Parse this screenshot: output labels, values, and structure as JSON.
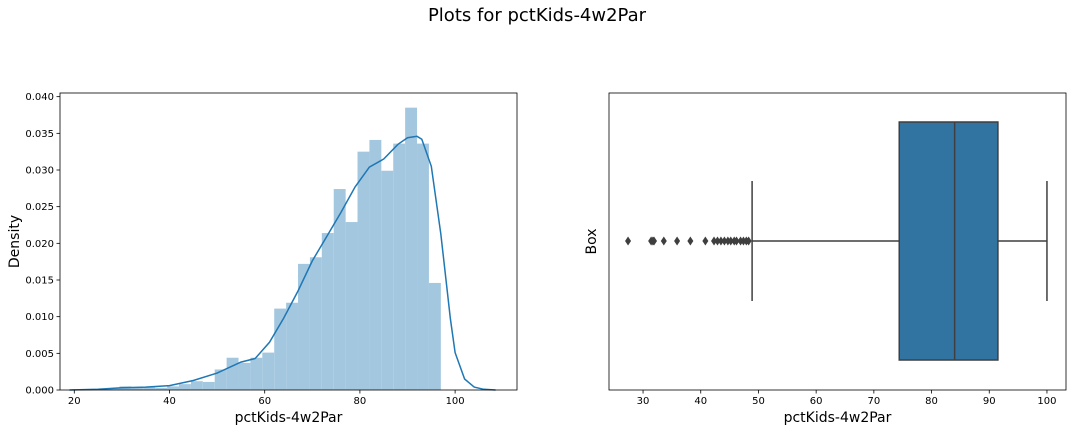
{
  "figure": {
    "suptitle": "Plots for pctKids-4w2Par"
  },
  "colors": {
    "hist": "#a3c7df",
    "kde": "#1f77b4",
    "box": "#3274a1",
    "box_line": "#3f3f3f"
  },
  "chart_data": [
    {
      "type": "histogram",
      "xlabel": "pctKids-4w2Par",
      "ylabel": "Density",
      "xlim": [
        17,
        113
      ],
      "ylim": [
        0,
        0.0405
      ],
      "xticks": [
        20,
        40,
        60,
        80,
        100
      ],
      "xtick_labels": [
        "20",
        "40",
        "60",
        "80",
        "100"
      ],
      "yticks": [
        0,
        0.005,
        0.01,
        0.015,
        0.02,
        0.025,
        0.03,
        0.035,
        0.04
      ],
      "ytick_labels": [
        "0.000",
        "0.005",
        "0.010",
        "0.015",
        "0.020",
        "0.025",
        "0.030",
        "0.035",
        "0.040"
      ],
      "bins": [
        {
          "x0": 19.5,
          "x1": 22.0,
          "h": 0.0001
        },
        {
          "x0": 22.0,
          "x1": 24.5,
          "h": 0.0001
        },
        {
          "x0": 24.5,
          "x1": 27.0,
          "h": 0.0001
        },
        {
          "x0": 27.0,
          "x1": 29.5,
          "h": 0.0002
        },
        {
          "x0": 29.5,
          "x1": 32.0,
          "h": 0.0005
        },
        {
          "x0": 32.0,
          "x1": 34.5,
          "h": 0.0004
        },
        {
          "x0": 34.5,
          "x1": 37.0,
          "h": 0.0004
        },
        {
          "x0": 37.0,
          "x1": 39.5,
          "h": 0.0003
        },
        {
          "x0": 39.5,
          "x1": 42.0,
          "h": 0.0005
        },
        {
          "x0": 42.0,
          "x1": 44.5,
          "h": 0.0008
        },
        {
          "x0": 44.5,
          "x1": 47.0,
          "h": 0.0012
        },
        {
          "x0": 47.0,
          "x1": 49.5,
          "h": 0.0011
        },
        {
          "x0": 49.5,
          "x1": 52.0,
          "h": 0.0028
        },
        {
          "x0": 52.0,
          "x1": 54.5,
          "h": 0.0044
        },
        {
          "x0": 54.5,
          "x1": 57.0,
          "h": 0.0037
        },
        {
          "x0": 57.0,
          "x1": 59.5,
          "h": 0.0044
        },
        {
          "x0": 59.5,
          "x1": 62.0,
          "h": 0.0051
        },
        {
          "x0": 62.0,
          "x1": 64.5,
          "h": 0.0111
        },
        {
          "x0": 64.5,
          "x1": 67.0,
          "h": 0.0119
        },
        {
          "x0": 67.0,
          "x1": 69.5,
          "h": 0.0172
        },
        {
          "x0": 69.5,
          "x1": 72.0,
          "h": 0.0181
        },
        {
          "x0": 72.0,
          "x1": 74.5,
          "h": 0.0214
        },
        {
          "x0": 74.5,
          "x1": 77.0,
          "h": 0.0274
        },
        {
          "x0": 77.0,
          "x1": 79.5,
          "h": 0.0229
        },
        {
          "x0": 79.5,
          "x1": 82.0,
          "h": 0.0325
        },
        {
          "x0": 82.0,
          "x1": 84.5,
          "h": 0.0341
        },
        {
          "x0": 84.5,
          "x1": 87.0,
          "h": 0.0299
        },
        {
          "x0": 87.0,
          "x1": 89.5,
          "h": 0.0336
        },
        {
          "x0": 89.5,
          "x1": 92.0,
          "h": 0.0385
        },
        {
          "x0": 92.0,
          "x1": 94.5,
          "h": 0.0336
        },
        {
          "x0": 94.5,
          "x1": 97.0,
          "h": 0.0146
        }
      ],
      "kde": {
        "x": [
          19,
          25,
          30,
          35,
          40,
          45,
          50,
          55,
          58,
          61,
          64,
          67,
          70,
          73,
          76,
          79,
          82,
          85,
          88,
          90,
          92,
          93,
          95,
          97,
          99,
          100,
          102,
          104,
          106,
          108.5
        ],
        "y": [
          0,
          0.0001,
          0.0003,
          0.0004,
          0.0006,
          0.0013,
          0.0023,
          0.0038,
          0.0043,
          0.0065,
          0.0098,
          0.0135,
          0.0176,
          0.0209,
          0.0242,
          0.0277,
          0.0304,
          0.0315,
          0.0335,
          0.0344,
          0.0346,
          0.0342,
          0.0305,
          0.0213,
          0.0097,
          0.0051,
          0.0015,
          0.0004,
          0.0001,
          0
        ]
      }
    },
    {
      "type": "box",
      "xlabel": "pctKids-4w2Par",
      "ylabel": "Box",
      "xlim": [
        24.1,
        103.3
      ],
      "xticks": [
        30,
        40,
        50,
        60,
        70,
        80,
        90,
        100
      ],
      "xtick_labels": [
        "30",
        "40",
        "50",
        "60",
        "70",
        "80",
        "90",
        "100"
      ],
      "whisker_low": 48.9,
      "q1": 74.4,
      "median": 84.0,
      "q3": 91.5,
      "whisker_high": 100,
      "outliers": [
        27.4,
        31.4,
        31.7,
        31.9,
        33.6,
        35.9,
        38.2,
        40.8,
        42.3,
        42.9,
        43.5,
        44.1,
        44.7,
        45.2,
        45.8,
        46.2,
        46.9,
        47.4,
        47.9,
        48.3
      ]
    }
  ]
}
